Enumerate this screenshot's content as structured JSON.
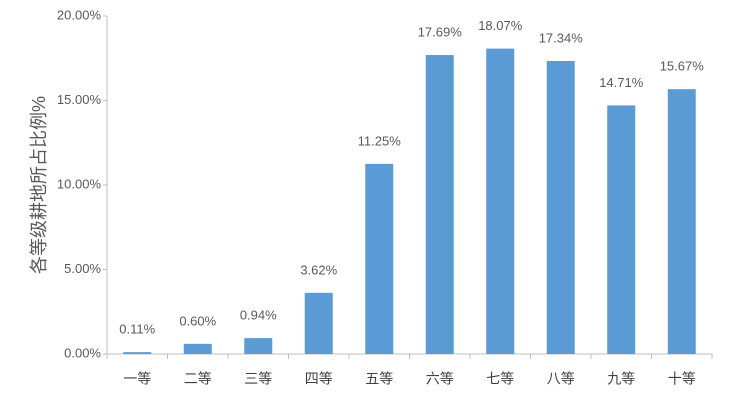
{
  "chart_data": {
    "type": "bar",
    "y_label": "各等级耕地所占比例%",
    "categories": [
      "一等",
      "二等",
      "三等",
      "四等",
      "五等",
      "六等",
      "七等",
      "八等",
      "九等",
      "十等"
    ],
    "values": [
      0.11,
      0.6,
      0.94,
      3.62,
      11.25,
      17.69,
      18.07,
      17.34,
      14.71,
      15.67
    ],
    "value_labels": [
      "0.11%",
      "0.60%",
      "0.94%",
      "3.62%",
      "11.25%",
      "17.69%",
      "18.07%",
      "17.34%",
      "14.71%",
      "15.67%"
    ],
    "color": "#5b9bd5",
    "ylim": [
      0,
      20
    ],
    "yticks": [
      {
        "value": 0,
        "label": "0.00%"
      },
      {
        "value": 5,
        "label": "5.00%"
      },
      {
        "value": 10,
        "label": "10.00%"
      },
      {
        "value": 15,
        "label": "15.00%"
      },
      {
        "value": 20,
        "label": "20.00%"
      }
    ],
    "grid": false
  }
}
